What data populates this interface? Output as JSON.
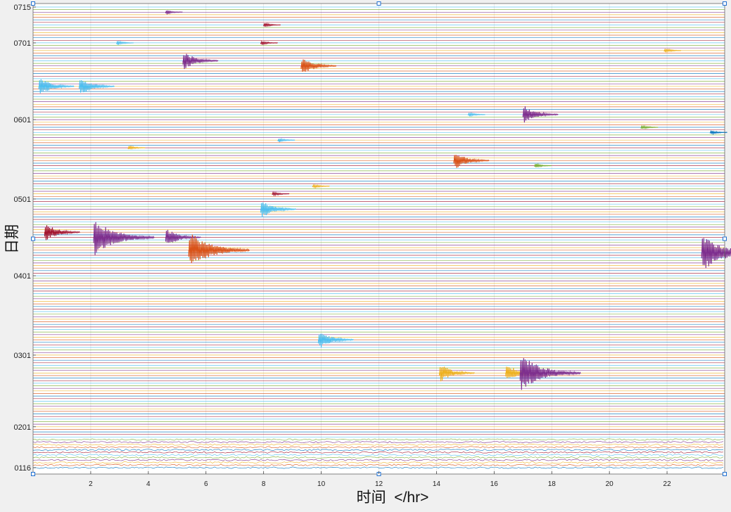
{
  "chart_data": {
    "type": "line",
    "subtype": "helicorder / stacked daily seismogram traces",
    "title": "",
    "xlabel": "时间  </hr>",
    "ylabel": "日期",
    "xlim": [
      0,
      24
    ],
    "x_unit": "hr",
    "xticks": [
      2,
      4,
      6,
      8,
      10,
      12,
      14,
      16,
      18,
      20,
      22
    ],
    "yticks": [
      "0715",
      "0701",
      "0601",
      "0501",
      "0401",
      "0301",
      "0201",
      "0116"
    ],
    "date_range": [
      "0116",
      "0715"
    ],
    "grid": true,
    "legend": "none",
    "trace_colors": [
      "#0072BD",
      "#D95319",
      "#EDB120",
      "#7E2F8E",
      "#77AC30",
      "#4DBEEE",
      "#A2142F"
    ],
    "events": [
      {
        "date": "0713",
        "hour": 4.7,
        "color": "#7E2F8E",
        "amplitude": "small"
      },
      {
        "date": "0708",
        "hour": 8.1,
        "color": "#A2142F",
        "amplitude": "small"
      },
      {
        "date": "0701",
        "hour": 3.0,
        "color": "#4DBEEE",
        "amplitude": "small"
      },
      {
        "date": "0701",
        "hour": 8.0,
        "color": "#A2142F",
        "amplitude": "small"
      },
      {
        "date": "0628",
        "hour": 22.0,
        "color": "#EDB120",
        "amplitude": "small"
      },
      {
        "date": "0624",
        "hour": 5.3,
        "color": "#7E2F8E",
        "amplitude": "medium"
      },
      {
        "date": "0622",
        "hour": 9.4,
        "color": "#D95319",
        "amplitude": "medium"
      },
      {
        "date": "0614",
        "hour": 0.3,
        "color": "#4DBEEE",
        "amplitude": "medium"
      },
      {
        "date": "0614",
        "hour": 1.7,
        "color": "#4DBEEE",
        "amplitude": "medium"
      },
      {
        "date": "0603",
        "hour": 17.1,
        "color": "#7E2F8E",
        "amplitude": "medium"
      },
      {
        "date": "0603",
        "hour": 15.2,
        "color": "#4DBEEE",
        "amplitude": "small"
      },
      {
        "date": "0529",
        "hour": 21.2,
        "color": "#77AC30",
        "amplitude": "small"
      },
      {
        "date": "0527",
        "hour": 23.6,
        "color": "#0072BD",
        "amplitude": "small"
      },
      {
        "date": "0524",
        "hour": 8.6,
        "color": "#4DBEEE",
        "amplitude": "small"
      },
      {
        "date": "0521",
        "hour": 3.4,
        "color": "#EDB120",
        "amplitude": "small"
      },
      {
        "date": "0516",
        "hour": 14.7,
        "color": "#D95319",
        "amplitude": "medium"
      },
      {
        "date": "0514",
        "hour": 17.5,
        "color": "#77AC30",
        "amplitude": "small"
      },
      {
        "date": "0506",
        "hour": 9.8,
        "color": "#EDB120",
        "amplitude": "small"
      },
      {
        "date": "0503",
        "hour": 8.4,
        "color": "#A2142F",
        "amplitude": "small"
      },
      {
        "date": "0427",
        "hour": 8.0,
        "color": "#4DBEEE",
        "amplitude": "medium"
      },
      {
        "date": "0418",
        "hour": 0.5,
        "color": "#A2142F",
        "amplitude": "medium"
      },
      {
        "date": "0416",
        "hour": 2.2,
        "color": "#7E2F8E",
        "amplitude": "large"
      },
      {
        "date": "0416",
        "hour": 4.7,
        "color": "#7E2F8E",
        "amplitude": "medium"
      },
      {
        "date": "0411",
        "hour": 5.5,
        "color": "#D95319",
        "amplitude": "large"
      },
      {
        "date": "0410",
        "hour": 23.3,
        "color": "#7E2F8E",
        "amplitude": "large"
      },
      {
        "date": "0307",
        "hour": 10.0,
        "color": "#4DBEEE",
        "amplitude": "medium"
      },
      {
        "date": "0222",
        "hour": 14.2,
        "color": "#EDB120",
        "amplitude": "medium"
      },
      {
        "date": "0222",
        "hour": 16.5,
        "color": "#EDB120",
        "amplitude": "medium"
      },
      {
        "date": "0222",
        "hour": 17.0,
        "color": "#7E2F8E",
        "amplitude": "large"
      }
    ]
  }
}
